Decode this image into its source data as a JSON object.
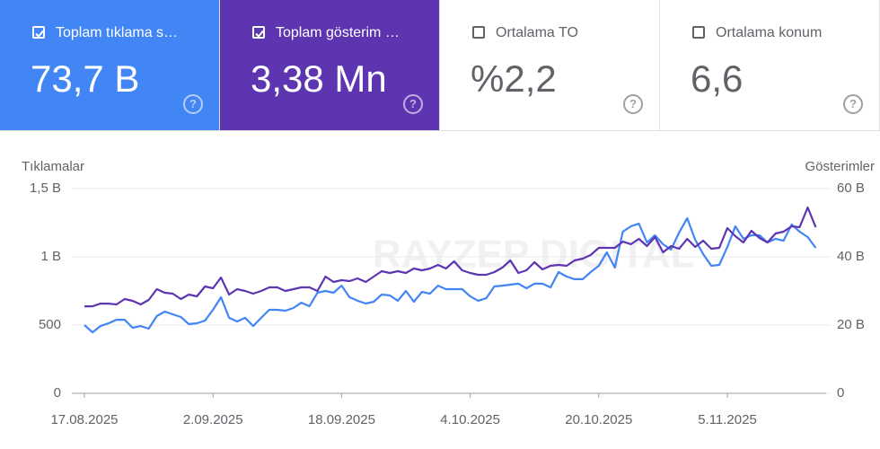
{
  "cards": [
    {
      "label": "Toplam tıklama s…",
      "value": "73,7 B",
      "checked": true,
      "color": "#4285f4"
    },
    {
      "label": "Toplam gösterim …",
      "value": "3,38 Mn",
      "checked": true,
      "color": "#5e35b1"
    },
    {
      "label": "Ortalama TO",
      "value": "%2,2",
      "checked": false,
      "color": "#ffffff"
    },
    {
      "label": "Ortalama konum",
      "value": "6,6",
      "checked": false,
      "color": "#ffffff"
    }
  ],
  "chart_data": {
    "type": "line",
    "ylabel": "Tıklamalar",
    "y2label": "Gösterimler",
    "watermark": "RAYZEP DIGITAL",
    "categories": [
      "17.08.2025",
      null,
      null,
      null,
      null,
      null,
      null,
      null,
      null,
      null,
      null,
      null,
      null,
      null,
      null,
      null,
      "2.09.2025",
      null,
      null,
      null,
      null,
      null,
      null,
      null,
      null,
      null,
      null,
      null,
      null,
      null,
      null,
      null,
      "18.09.2025",
      null,
      null,
      null,
      null,
      null,
      null,
      null,
      null,
      null,
      null,
      null,
      null,
      null,
      null,
      null,
      "4.10.2025",
      null,
      null,
      null,
      null,
      null,
      null,
      null,
      null,
      null,
      null,
      null,
      null,
      null,
      null,
      null,
      "20.10.2025",
      null,
      null,
      null,
      null,
      null,
      null,
      null,
      null,
      null,
      null,
      null,
      null,
      null,
      null,
      null,
      "5.11.2025",
      null,
      null,
      null,
      null,
      null,
      null,
      null,
      null,
      null,
      null,
      null
    ],
    "series": [
      {
        "name": "Toplam tıklama s…",
        "color": "#4285f4",
        "axis": "y",
        "values": [
          500,
          447,
          493,
          513,
          539,
          539,
          480,
          493,
          474,
          566,
          599,
          579,
          559,
          507,
          513,
          533,
          612,
          704,
          553,
          526,
          553,
          493,
          553,
          612,
          612,
          605,
          625,
          664,
          638,
          737,
          750,
          737,
          789,
          704,
          678,
          658,
          671,
          724,
          717,
          678,
          750,
          671,
          743,
          730,
          789,
          763,
          763,
          763,
          711,
          678,
          697,
          783,
          789,
          796,
          803,
          770,
          803,
          803,
          776,
          888,
          855,
          836,
          836,
          888,
          934,
          1033,
          921,
          1184,
          1224,
          1243,
          1105,
          1158,
          1092,
          1053,
          1178,
          1283,
          1125,
          1020,
          934,
          941,
          1072,
          1224,
          1132,
          1158,
          1158,
          1105,
          1132,
          1118,
          1237,
          1184,
          1145,
          1066
        ]
      },
      {
        "name": "Toplam gösterim …",
        "color": "#5e35b1",
        "axis": "y2",
        "values": [
          25500,
          25500,
          26300,
          26300,
          26050,
          27630,
          27105,
          26050,
          27370,
          30530,
          29470,
          29210,
          27630,
          28950,
          28420,
          31320,
          30790,
          33950,
          28950,
          30530,
          30000,
          29210,
          30000,
          31050,
          31050,
          30000,
          30530,
          31050,
          31050,
          30000,
          34210,
          32630,
          33160,
          32900,
          33680,
          32630,
          34210,
          35790,
          35260,
          35790,
          35260,
          36580,
          36050,
          36580,
          37630,
          36580,
          38680,
          36050,
          35260,
          34740,
          34740,
          35530,
          36840,
          38950,
          35260,
          36050,
          38420,
          36320,
          37370,
          37630,
          37370,
          38950,
          39470,
          40530,
          42630,
          42630,
          42630,
          44470,
          43680,
          45260,
          43160,
          45790,
          41320,
          43160,
          42370,
          45260,
          42890,
          44740,
          42370,
          42630,
          48420,
          46050,
          44210,
          47630,
          45530,
          44210,
          46840,
          47370,
          48950,
          48680,
          54470,
          48680
        ]
      }
    ],
    "ylim": [
      0,
      1500
    ],
    "yticks": [
      0,
      500,
      {
        "value": 1000,
        "label": "1 B"
      },
      {
        "value": 1500,
        "label": "1,5 B"
      }
    ],
    "y2lim": [
      0,
      60000
    ],
    "y2ticks": [
      {
        "value": 0,
        "label": "0"
      },
      {
        "value": 20000,
        "label": "20 B"
      },
      {
        "value": 40000,
        "label": "40 B"
      },
      {
        "value": 60000,
        "label": "60 B"
      }
    ],
    "grid": true
  }
}
